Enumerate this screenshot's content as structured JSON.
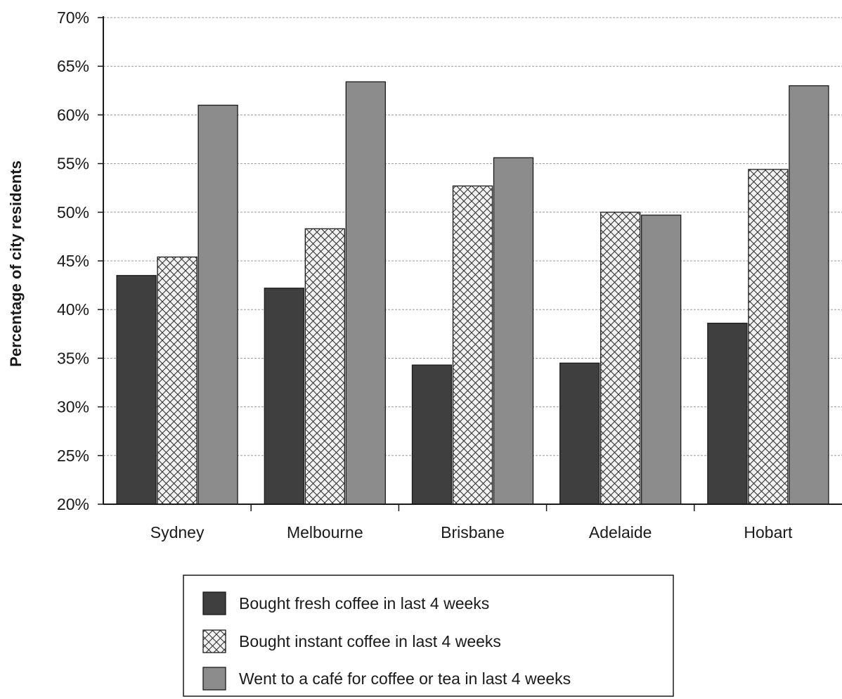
{
  "chart_data": {
    "type": "bar",
    "title": "",
    "xlabel": "",
    "ylabel": "Percentage of city residents",
    "ylim": [
      20,
      70
    ],
    "ytick_values": [
      20,
      25,
      30,
      35,
      40,
      45,
      50,
      55,
      60,
      65,
      70
    ],
    "ytick_labels": [
      "20%",
      "25%",
      "30%",
      "35%",
      "40%",
      "45%",
      "50%",
      "55%",
      "60%",
      "65%",
      "70%"
    ],
    "categories": [
      "Sydney",
      "Melbourne",
      "Brisbane",
      "Adelaide",
      "Hobart"
    ],
    "series": [
      {
        "name": "Bought fresh coffee in last 4 weeks",
        "values": [
          43.5,
          42.2,
          34.3,
          34.5,
          38.6
        ],
        "color": "#3f3f3f",
        "pattern": "solid"
      },
      {
        "name": "Bought instant coffee in last 4 weeks",
        "values": [
          45.4,
          48.3,
          52.7,
          50.0,
          54.4
        ],
        "color": "#e8e8e8",
        "pattern": "crosshatch"
      },
      {
        "name": "Went to a café for coffee or tea in last 4 weeks",
        "values": [
          61.0,
          63.4,
          55.6,
          49.7,
          63.0
        ],
        "color": "#8c8c8c",
        "pattern": "solid"
      }
    ],
    "grid": true,
    "legend_position": "bottom-center"
  }
}
